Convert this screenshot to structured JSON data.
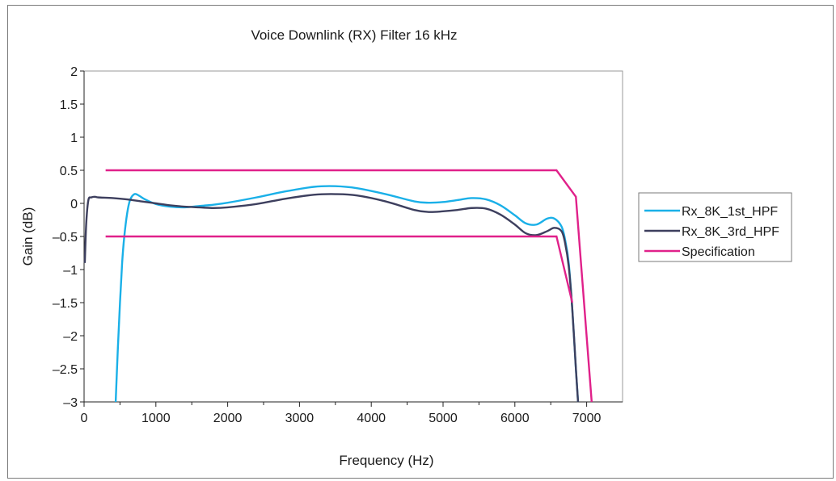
{
  "chart_data": {
    "type": "line",
    "title": "Voice Downlink (RX) Filter 16 kHz",
    "xlabel": "Frequency (Hz)",
    "ylabel": "Gain (dB)",
    "xlim": [
      0,
      7500
    ],
    "ylim": [
      -3,
      2
    ],
    "x_ticks": [
      0,
      1000,
      2000,
      3000,
      4000,
      5000,
      6000,
      7000
    ],
    "y_ticks": [
      2,
      1.5,
      1,
      0.5,
      0,
      -0.5,
      -1,
      -1.5,
      -2,
      -2.5,
      -3
    ],
    "x_tick_labels": [
      "0",
      "1000",
      "2000",
      "3000",
      "4000",
      "5000",
      "6000",
      "7000"
    ],
    "y_tick_labels": [
      "2",
      "1.5",
      "1",
      "0.5",
      "0",
      "–0.5",
      "–1",
      "–1.5",
      "–2",
      "–2.5",
      "–3"
    ],
    "grid": false,
    "legend_position": "right",
    "series": [
      {
        "name": "Rx_8K_1st_HPF",
        "color": "#1ab0e8",
        "x": [
          440,
          470,
          500,
          530,
          560,
          600,
          640,
          700,
          760,
          850,
          1000,
          1200,
          1400,
          1600,
          1800,
          2000,
          2400,
          2800,
          3200,
          3500,
          3800,
          4200,
          4600,
          4800,
          5000,
          5200,
          5400,
          5600,
          5800,
          6000,
          6150,
          6300,
          6450,
          6550,
          6650,
          6700,
          6750,
          6800,
          6850,
          6880
        ],
        "y": [
          -3,
          -2.2,
          -1.5,
          -0.9,
          -0.5,
          -0.15,
          0.05,
          0.14,
          0.12,
          0.06,
          -0.01,
          -0.05,
          -0.06,
          -0.04,
          -0.02,
          0.01,
          0.09,
          0.18,
          0.25,
          0.26,
          0.23,
          0.14,
          0.03,
          0.01,
          0.02,
          0.05,
          0.08,
          0.06,
          -0.03,
          -0.18,
          -0.3,
          -0.32,
          -0.23,
          -0.23,
          -0.35,
          -0.55,
          -0.9,
          -1.6,
          -2.5,
          -3
        ]
      },
      {
        "name": "Rx_8K_3rd_HPF",
        "color": "#3d3f5e",
        "x": [
          10,
          30,
          60,
          100,
          150,
          200,
          400,
          600,
          800,
          1000,
          1200,
          1400,
          1600,
          1800,
          2000,
          2400,
          2800,
          3200,
          3500,
          3800,
          4200,
          4600,
          4800,
          5000,
          5200,
          5400,
          5600,
          5800,
          6000,
          6150,
          6300,
          6450,
          6550,
          6650,
          6700,
          6750,
          6800,
          6850,
          6880
        ],
        "y": [
          -0.9,
          -0.3,
          0.05,
          0.09,
          0.1,
          0.09,
          0.08,
          0.06,
          0.03,
          0.0,
          -0.03,
          -0.05,
          -0.06,
          -0.07,
          -0.06,
          -0.01,
          0.07,
          0.13,
          0.14,
          0.12,
          0.03,
          -0.1,
          -0.13,
          -0.12,
          -0.1,
          -0.07,
          -0.08,
          -0.17,
          -0.32,
          -0.45,
          -0.48,
          -0.42,
          -0.37,
          -0.42,
          -0.6,
          -0.95,
          -1.6,
          -2.5,
          -3
        ]
      },
      {
        "name": "Specification",
        "color": "#e0218a",
        "segments": [
          {
            "x": [
              300,
              6580,
              6850,
              7070
            ],
            "y": [
              0.5,
              0.5,
              0.1,
              -3
            ]
          },
          {
            "x": [
              300,
              6580,
              6800
            ],
            "y": [
              -0.5,
              -0.5,
              -1.5
            ]
          }
        ]
      }
    ]
  }
}
